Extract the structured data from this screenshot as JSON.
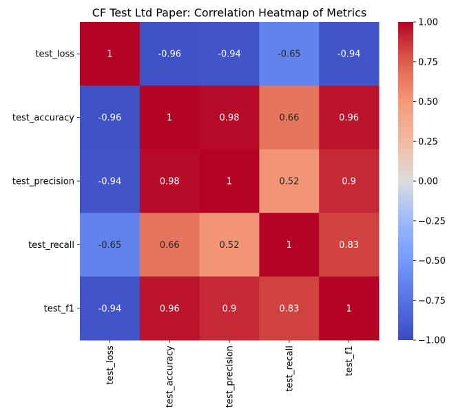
{
  "chart_data": {
    "type": "heatmap",
    "title": "CF Test Ltd Paper: Correlation Heatmap of Metrics",
    "x_categories": [
      "test_loss",
      "test_accuracy",
      "test_precision",
      "test_recall",
      "test_f1"
    ],
    "y_categories": [
      "test_loss",
      "test_accuracy",
      "test_precision",
      "test_recall",
      "test_f1"
    ],
    "values": [
      [
        1,
        -0.96,
        -0.94,
        -0.65,
        -0.94
      ],
      [
        -0.96,
        1,
        0.98,
        0.66,
        0.96
      ],
      [
        -0.94,
        0.98,
        1,
        0.52,
        0.9
      ],
      [
        -0.65,
        0.66,
        0.52,
        1,
        0.83
      ],
      [
        -0.94,
        0.96,
        0.9,
        0.83,
        1
      ]
    ],
    "cell_labels": [
      [
        "1",
        "-0.96",
        "-0.94",
        "-0.65",
        "-0.94"
      ],
      [
        "-0.96",
        "1",
        "0.98",
        "0.66",
        "0.96"
      ],
      [
        "-0.94",
        "0.98",
        "1",
        "0.52",
        "0.9"
      ],
      [
        "-0.65",
        "0.66",
        "0.52",
        "1",
        "0.83"
      ],
      [
        "-0.94",
        "0.96",
        "0.9",
        "0.83",
        "1"
      ]
    ],
    "colormap": "coolwarm",
    "vmin": -1,
    "vmax": 1,
    "colorbar": {
      "ticks": [
        1.0,
        0.75,
        0.5,
        0.25,
        0.0,
        -0.25,
        -0.5,
        -0.75,
        -1.0
      ],
      "tick_labels": [
        "1.00",
        "0.75",
        "0.50",
        "0.25",
        "0.00",
        "−0.25",
        "−0.50",
        "−0.75",
        "−1.00"
      ],
      "position": "right"
    },
    "xlabel": "",
    "ylabel": "",
    "grid": false
  }
}
